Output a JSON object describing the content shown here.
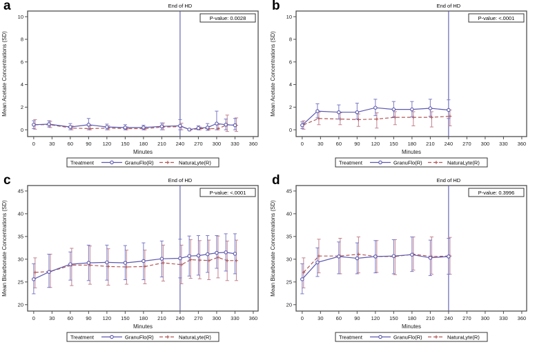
{
  "figure": {
    "xlabel": "Minutes",
    "legend_title": "Treatment",
    "end_of_hd_label": "End of HD",
    "colors": {
      "granuflo": "#5a57ae",
      "granuflo_err": "#7b79c6",
      "naturalyte": "#b15555",
      "naturalyte_err": "#c2808f",
      "frame": "#4d4d4d",
      "tick_text": "#1a1a1a",
      "end_line": "#5a57ae",
      "pvalue_border": "#333333"
    }
  },
  "chart_data": [
    {
      "type": "line",
      "panel_label": "a",
      "ylabel": "Mean Acetate Concentrations (SD)",
      "xlabel": "Minutes",
      "p_value_label": "P-value: 0.0028",
      "end_of_hd_x": 240,
      "ylim": [
        -0.6,
        10.5
      ],
      "yticks": [
        0,
        2,
        4,
        6,
        8,
        10
      ],
      "xlim": [
        -10,
        368
      ],
      "xticks": [
        0,
        30,
        60,
        90,
        120,
        150,
        180,
        210,
        240,
        270,
        300,
        330,
        360
      ],
      "legend_position": "bottom",
      "grid": false,
      "series": [
        {
          "name": "GranuFlo(R)",
          "x": [
            0,
            25,
            60,
            90,
            120,
            150,
            180,
            210,
            240,
            255,
            270,
            285,
            300,
            315,
            330
          ],
          "y": [
            0.45,
            0.5,
            0.25,
            0.45,
            0.25,
            0.2,
            0.2,
            0.3,
            0.35,
            0.02,
            0.15,
            0.2,
            0.55,
            0.45,
            0.4
          ],
          "err_up": [
            0.35,
            0.3,
            0.3,
            0.55,
            0.25,
            0.25,
            0.2,
            0.3,
            0.55,
            0.04,
            0.2,
            0.35,
            1.1,
            0.5,
            0.6
          ],
          "err_dn": [
            0.35,
            0.25,
            0.25,
            0.45,
            0.25,
            0.2,
            0.2,
            0.3,
            0.35,
            0.02,
            0.15,
            0.25,
            0.55,
            0.45,
            0.4
          ]
        },
        {
          "name": "NaturaLyte(R)",
          "x": [
            0,
            25,
            60,
            90,
            120,
            150,
            180,
            210,
            240,
            255,
            270,
            285,
            300,
            315,
            330
          ],
          "y": [
            0.45,
            0.45,
            0.15,
            0.1,
            0.15,
            0.1,
            0.1,
            0.25,
            0.28,
            0.01,
            0.1,
            0.1,
            0.1,
            0.45,
            0.4
          ],
          "err_up": [
            0.45,
            0.3,
            0.2,
            0.25,
            0.2,
            0.15,
            0.15,
            0.35,
            0.3,
            0.03,
            0.15,
            0.2,
            0.35,
            0.85,
            0.65
          ],
          "err_dn": [
            0.4,
            0.25,
            0.15,
            0.1,
            0.15,
            0.1,
            0.1,
            0.25,
            0.28,
            0.01,
            0.1,
            0.1,
            0.1,
            0.6,
            0.55
          ]
        }
      ]
    },
    {
      "type": "line",
      "panel_label": "b",
      "ylabel": "Mean Acetate Concentrations (SD)",
      "xlabel": "Minutes",
      "p_value_label": "P-value: <.0001",
      "end_of_hd_x": 240,
      "ylim": [
        -0.6,
        10.5
      ],
      "yticks": [
        0,
        2,
        4,
        6,
        8,
        10
      ],
      "xlim": [
        -10,
        368
      ],
      "xticks": [
        0,
        30,
        60,
        90,
        120,
        150,
        180,
        210,
        240,
        270,
        300,
        330,
        360
      ],
      "legend_position": "bottom",
      "grid": false,
      "series": [
        {
          "name": "GranuFlo(R)",
          "x": [
            0,
            25,
            60,
            90,
            120,
            150,
            180,
            210,
            240
          ],
          "y": [
            0.4,
            1.65,
            1.55,
            1.55,
            1.95,
            1.8,
            1.8,
            1.9,
            1.75
          ],
          "err_up": [
            0.3,
            0.65,
            0.65,
            0.8,
            0.75,
            0.7,
            0.7,
            0.8,
            0.9
          ],
          "err_dn": [
            0.3,
            0.6,
            0.6,
            0.6,
            0.7,
            0.65,
            0.65,
            0.7,
            0.75
          ]
        },
        {
          "name": "NaturaLyte(R)",
          "x": [
            0,
            25,
            60,
            90,
            120,
            150,
            180,
            210,
            240
          ],
          "y": [
            0.45,
            1.0,
            0.95,
            0.9,
            0.95,
            1.1,
            1.1,
            1.1,
            1.2
          ],
          "err_up": [
            0.35,
            0.55,
            0.55,
            0.5,
            0.55,
            0.5,
            0.5,
            0.5,
            0.55
          ],
          "err_dn": [
            0.4,
            0.55,
            0.5,
            0.6,
            0.8,
            0.65,
            0.75,
            0.85,
            0.85
          ]
        }
      ]
    },
    {
      "type": "line",
      "panel_label": "c",
      "ylabel": "Mean Bicarbonate Concentrations (SD)",
      "xlabel": "Minutes",
      "p_value_label": "P-value: <.0001",
      "end_of_hd_x": 240,
      "ylim": [
        18.6,
        46.2
      ],
      "yticks": [
        20,
        25,
        30,
        35,
        40,
        45
      ],
      "xlim": [
        -10,
        368
      ],
      "xticks": [
        0,
        30,
        60,
        90,
        120,
        150,
        180,
        210,
        240,
        270,
        300,
        330,
        360
      ],
      "legend_position": "bottom",
      "grid": false,
      "series": [
        {
          "name": "GranuFlo(R)",
          "x": [
            0,
            25,
            60,
            90,
            120,
            150,
            180,
            210,
            240,
            255,
            270,
            285,
            300,
            315,
            330
          ],
          "y": [
            25.6,
            27.2,
            28.9,
            29.2,
            29.3,
            29.2,
            29.6,
            30.1,
            30.2,
            30.7,
            30.8,
            31.1,
            31.4,
            31.5,
            31.2
          ],
          "err_up": [
            3.4,
            3.9,
            2.7,
            3.9,
            3.8,
            3.8,
            4.0,
            3.9,
            4.2,
            4.4,
            4.4,
            4.1,
            3.8,
            4.1,
            4.4
          ],
          "err_dn": [
            3.2,
            3.4,
            3.5,
            3.9,
            3.9,
            3.7,
            4.1,
            4.0,
            4.3,
            4.4,
            4.3,
            4.0,
            3.4,
            4.1,
            4.4
          ]
        },
        {
          "name": "NaturaLyte(R)",
          "x": [
            0,
            25,
            60,
            90,
            120,
            150,
            180,
            210,
            240,
            255,
            270,
            285,
            300,
            315,
            330
          ],
          "y": [
            27.1,
            27.3,
            28.7,
            28.7,
            28.4,
            28.3,
            28.4,
            29.2,
            28.8,
            29.9,
            29.8,
            29.7,
            30.4,
            29.7,
            29.7
          ],
          "err_up": [
            3.2,
            3.8,
            3.7,
            4.2,
            3.9,
            3.7,
            3.6,
            3.9,
            4.3,
            4.4,
            4.3,
            4.5,
            4.7,
            4.3,
            4.5
          ],
          "err_dn": [
            3.4,
            3.5,
            4.5,
            4.2,
            4.1,
            3.8,
            3.8,
            4.0,
            4.2,
            4.1,
            4.1,
            4.2,
            4.5,
            4.4,
            4.4
          ]
        }
      ]
    },
    {
      "type": "line",
      "panel_label": "d",
      "ylabel": "Mean Bicarbonate Concentrations (SD)",
      "xlabel": "Minutes",
      "p_value_label": "P-value: 0.3996",
      "end_of_hd_x": 240,
      "ylim": [
        18.6,
        46.2
      ],
      "yticks": [
        20,
        25,
        30,
        35,
        40,
        45
      ],
      "xlim": [
        -10,
        368
      ],
      "xticks": [
        0,
        30,
        60,
        90,
        120,
        150,
        180,
        210,
        240,
        270,
        300,
        330,
        360
      ],
      "legend_position": "bottom",
      "grid": false,
      "series": [
        {
          "name": "GranuFlo(R)",
          "x": [
            0,
            25,
            60,
            90,
            120,
            150,
            180,
            210,
            240
          ],
          "y": [
            25.6,
            29.3,
            30.6,
            30.2,
            30.6,
            30.7,
            31.0,
            30.3,
            30.6
          ],
          "err_up": [
            3.4,
            3.2,
            3.2,
            3.4,
            3.5,
            3.6,
            3.9,
            3.9,
            4.0
          ],
          "err_dn": [
            3.2,
            3.1,
            3.8,
            3.4,
            3.6,
            3.9,
            3.7,
            3.9,
            3.9
          ]
        },
        {
          "name": "NaturaLyte(R)",
          "x": [
            0,
            25,
            60,
            90,
            120,
            150,
            180,
            210,
            240
          ],
          "y": [
            27.1,
            30.7,
            30.7,
            31.1,
            30.6,
            30.6,
            31.1,
            30.6,
            30.7
          ],
          "err_up": [
            3.2,
            3.7,
            3.9,
            3.8,
            3.5,
            3.7,
            3.8,
            4.3,
            4.1
          ],
          "err_dn": [
            3.4,
            3.7,
            3.9,
            4.1,
            3.5,
            4.0,
            3.5,
            3.9,
            4.0
          ]
        }
      ]
    }
  ]
}
